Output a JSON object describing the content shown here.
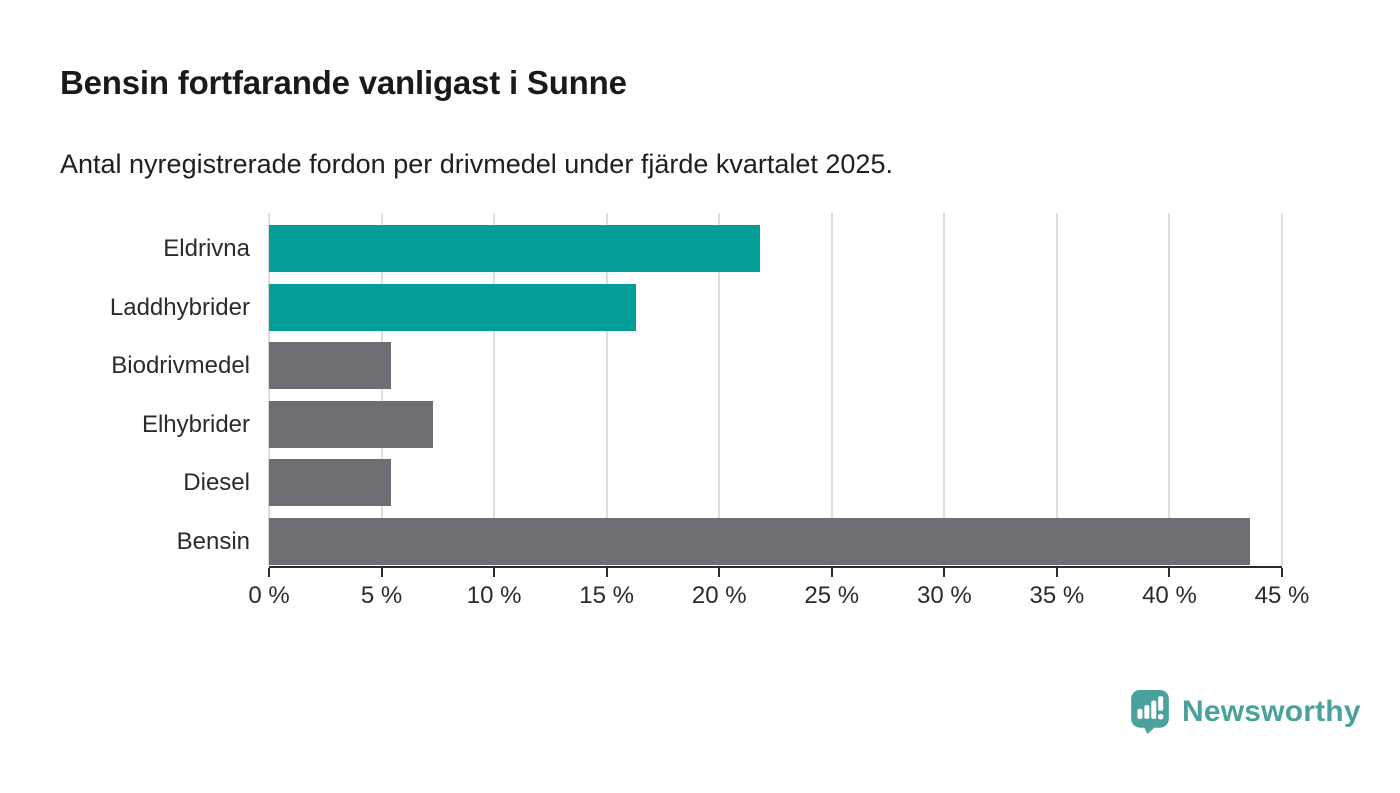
{
  "header": {
    "title": "Bensin fortfarande vanligast i Sunne",
    "subtitle": "Antal nyregistrerade fordon per drivmedel under fjärde kvartalet 2025."
  },
  "chart_data": {
    "type": "bar",
    "orientation": "horizontal",
    "title": "Bensin fortfarande vanligast i Sunne",
    "subtitle": "Antal nyregistrerade fordon per drivmedel under fjärde kvartalet 2025.",
    "categories": [
      "Eldrivna",
      "Laddhybrider",
      "Biodrivmedel",
      "Elhybrider",
      "Diesel",
      "Bensin"
    ],
    "values": [
      21.8,
      16.3,
      5.4,
      7.3,
      5.4,
      43.6
    ],
    "unit": "%",
    "xlabel": "",
    "ylabel": "",
    "xlim": [
      0,
      45
    ],
    "x_ticks": [
      0,
      5,
      10,
      15,
      20,
      25,
      30,
      35,
      40,
      45
    ],
    "x_tick_labels": [
      "0 %",
      "5 %",
      "10 %",
      "15 %",
      "20 %",
      "25 %",
      "30 %",
      "35 %",
      "40 %",
      "45 %"
    ],
    "grid": "vertical-only",
    "legend": "none",
    "bar_colors": [
      "#029e97",
      "#029e97",
      "#6f6e74",
      "#6f6e74",
      "#6f6e74",
      "#6f6e74"
    ],
    "colors": {
      "highlight_teal": "#029e97",
      "neutral_gray": "#6f6e74",
      "gridline": "#dcdcdc",
      "axis": "#2b2b2b",
      "text": "#1f1f1f"
    }
  },
  "footer": {
    "brand": "Newsworthy",
    "brand_color": "#4ba29d",
    "logo_icon": "speech-bubble-bar-chart-exclamation"
  }
}
